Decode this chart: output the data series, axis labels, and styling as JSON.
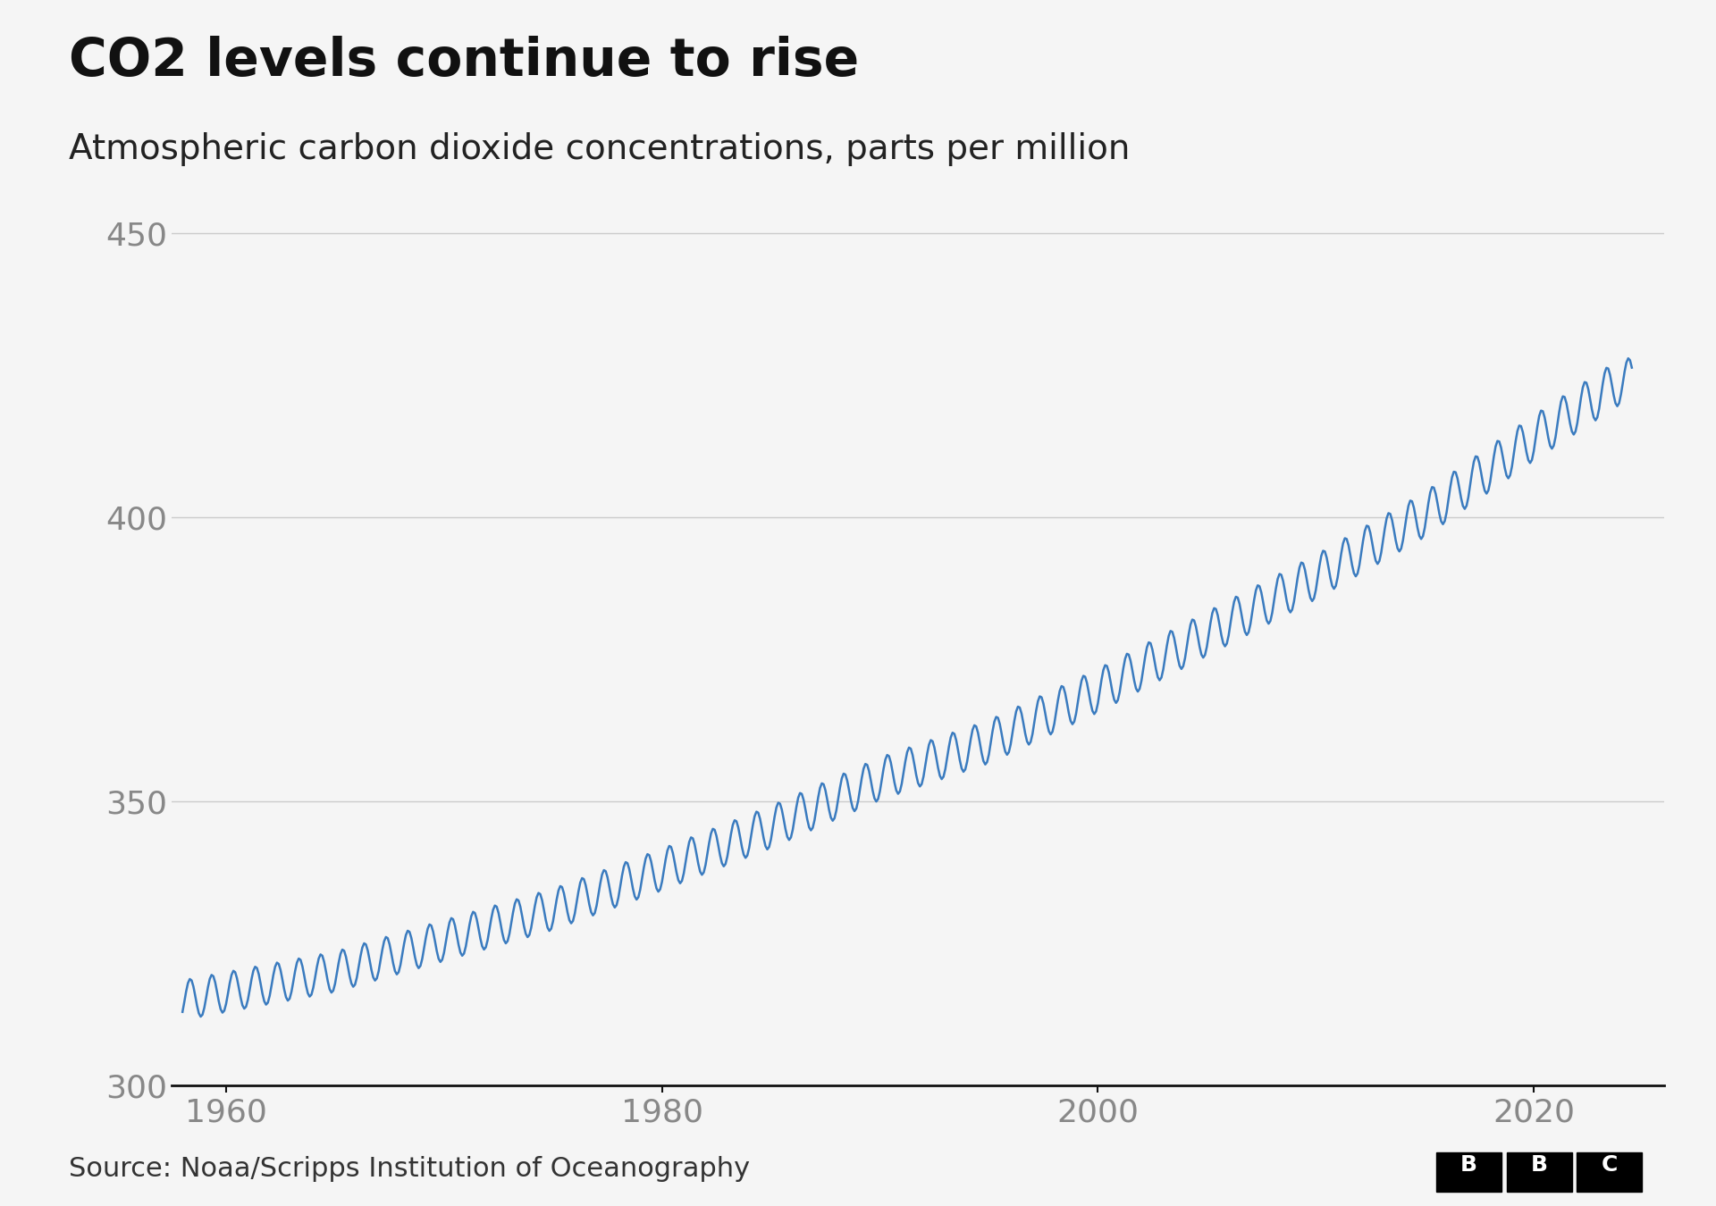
{
  "title": "CO2 levels continue to rise",
  "subtitle": "Atmospheric carbon dioxide concentrations, parts per million",
  "source_text": "Source: Noaa/Scripps Institution of Oceanography",
  "bbc_label": "BBC",
  "line_color": "#3a7bbf",
  "background_color": "#f5f5f5",
  "title_color": "#111111",
  "subtitle_color": "#222222",
  "axis_label_color": "#888888",
  "tick_color": "#888888",
  "grid_color": "#cccccc",
  "spine_color": "#111111",
  "source_color": "#333333",
  "ylim": [
    300,
    455
  ],
  "xlim": [
    1957.5,
    2026
  ],
  "yticks": [
    300,
    350,
    400,
    450
  ],
  "xticks": [
    1960,
    1980,
    2000,
    2020
  ],
  "line_width": 1.8,
  "title_fontsize": 42,
  "subtitle_fontsize": 28,
  "tick_fontsize": 26,
  "source_fontsize": 22
}
